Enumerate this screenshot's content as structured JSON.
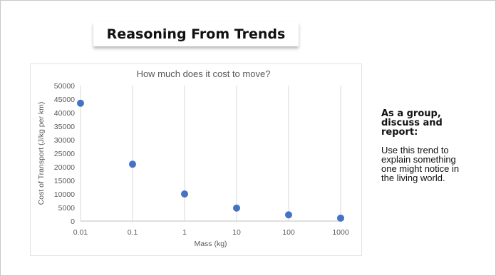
{
  "slide": {
    "title": "Reasoning From Trends",
    "side_heading": "As a group, discuss and report:",
    "side_body": "Use this trend to explain something one might notice in the living world."
  },
  "chart_data": {
    "type": "scatter",
    "title": "How much does it cost to move?",
    "xlabel": "Mass (kg)",
    "ylabel": "Cost of Transport (J/kg per km)",
    "x_scale": "log",
    "x_ticks": [
      "0.01",
      "0.1",
      "1",
      "10",
      "100",
      "1000"
    ],
    "y_ticks": [
      "0",
      "5000",
      "10000",
      "15000",
      "20000",
      "25000",
      "30000",
      "35000",
      "40000",
      "45000",
      "50000"
    ],
    "ylim": [
      0,
      50000
    ],
    "xlim": [
      0.01,
      1000
    ],
    "grid": "vertical",
    "marker_color": "#4472c4",
    "x": [
      0.01,
      0.1,
      1,
      10,
      100,
      1000
    ],
    "y": [
      43500,
      21000,
      10000,
      4800,
      2300,
      1100
    ]
  }
}
